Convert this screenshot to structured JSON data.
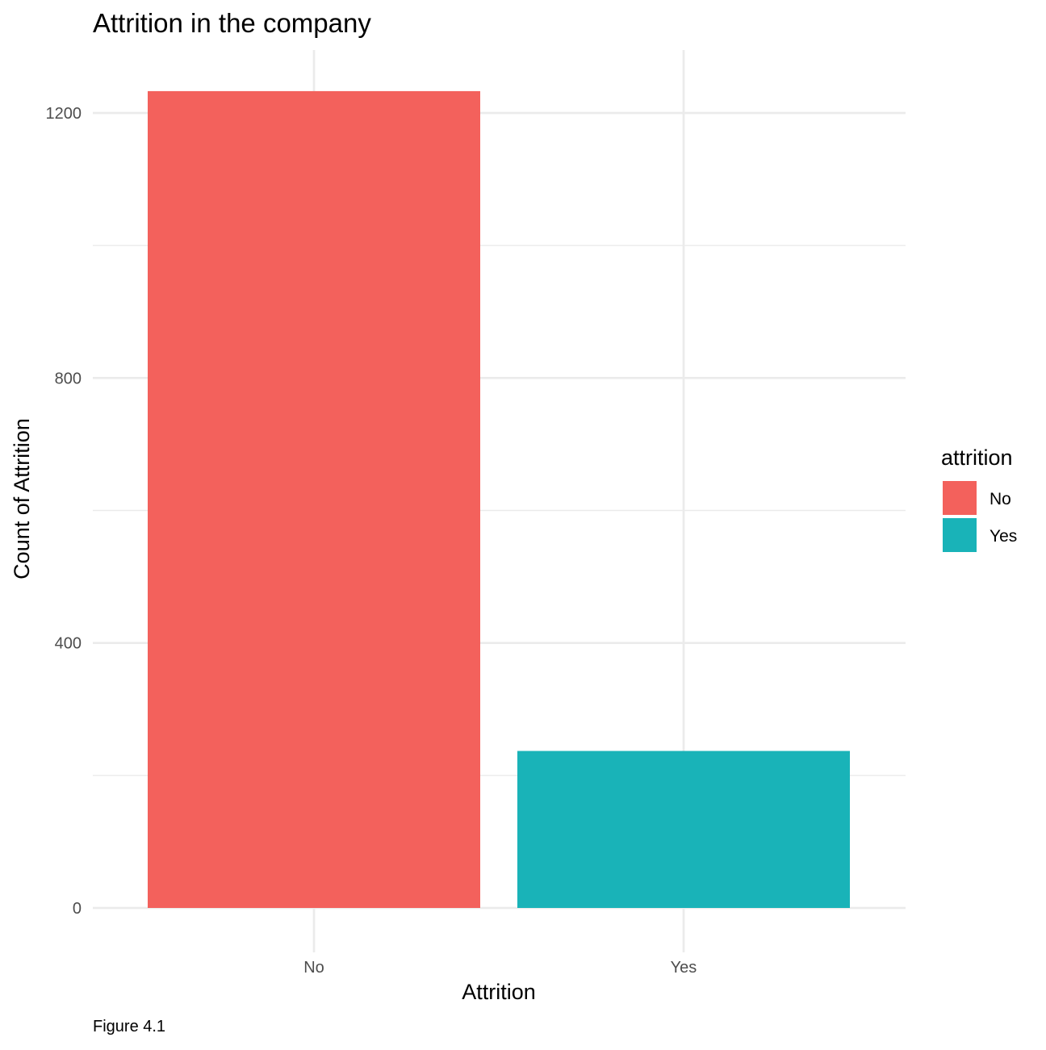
{
  "chart_data": {
    "type": "bar",
    "title": "Attrition in the company",
    "xlabel": "Attrition",
    "ylabel": "Count of Attrition",
    "caption": "Figure 4.1",
    "categories": [
      "No",
      "Yes"
    ],
    "values": [
      1233,
      237
    ],
    "colors": [
      "#F8766D",
      "#00BFC4"
    ],
    "bar_colors_rendered": [
      "#F3615C",
      "#19B3B8"
    ],
    "ylim": [
      0,
      1290
    ],
    "yticks": [
      0,
      400,
      800,
      1200
    ],
    "yticks_minor": [
      200,
      600,
      1000
    ],
    "ytick_labels": [
      "0",
      "400",
      "800",
      "1200"
    ],
    "grid": true,
    "legend": {
      "title": "attrition",
      "position": "right",
      "entries": [
        {
          "label": "No",
          "color": "#F3615C"
        },
        {
          "label": "Yes",
          "color": "#19B3B8"
        }
      ]
    }
  }
}
